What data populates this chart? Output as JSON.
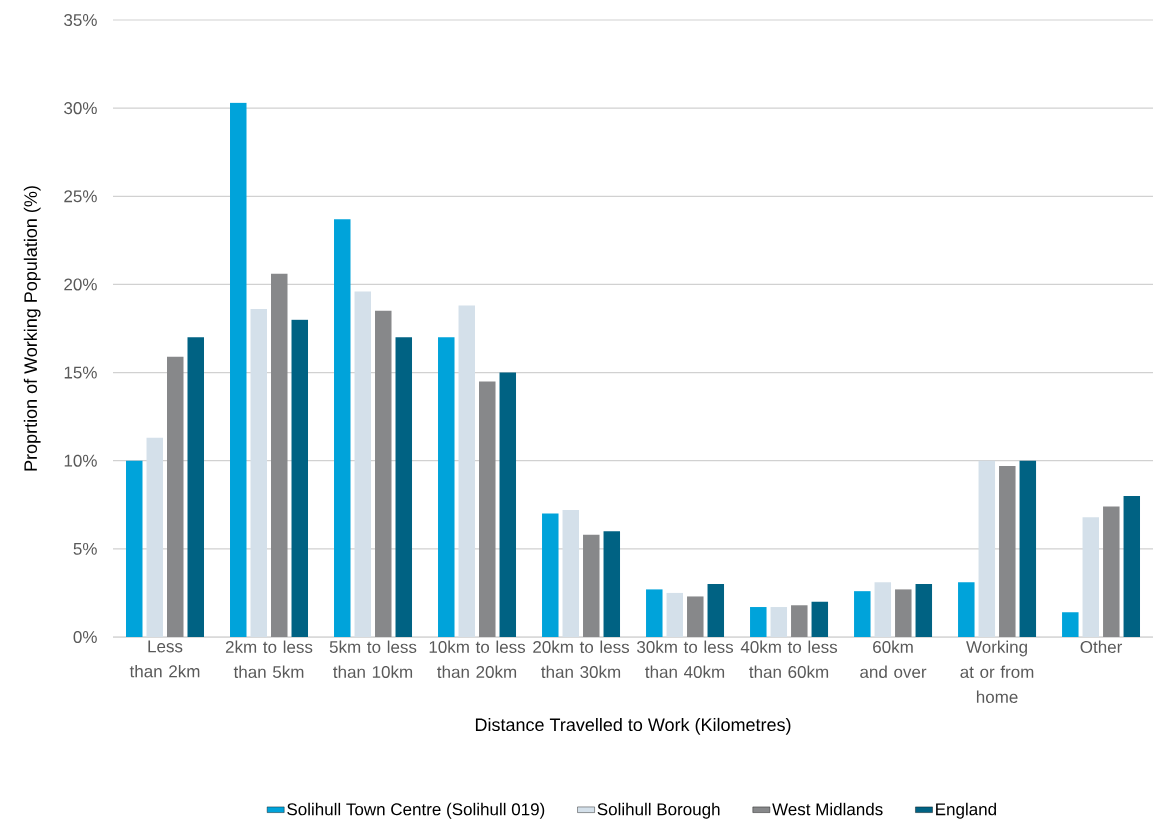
{
  "chart_data": {
    "type": "bar",
    "xlabel": "Distance Travelled to Work (Kilometres)",
    "ylabel": "Proprtion of Working Population (%)",
    "categories": [
      "Less than 2km",
      "2km to less than 5km",
      "5km to less than 10km",
      "10km to less than 20km",
      "20km to less than 30km",
      "30km to less than 40km",
      "40km to less than 60km",
      "60km and over",
      "Working at or from home",
      "Other"
    ],
    "series": [
      {
        "name": "Solihull Town Centre (Solihull 019)",
        "color": "#00a3da",
        "values": [
          10.0,
          30.3,
          23.7,
          17.0,
          7.0,
          2.7,
          1.7,
          2.6,
          3.1,
          1.4
        ]
      },
      {
        "name": "Solihull Borough",
        "color": "#d4e0ea",
        "values": [
          11.3,
          18.6,
          19.6,
          18.8,
          7.2,
          2.5,
          1.7,
          3.1,
          10.0,
          6.8
        ]
      },
      {
        "name": "West Midlands",
        "color": "#87888a",
        "values": [
          15.9,
          20.6,
          18.5,
          14.5,
          5.8,
          2.3,
          1.8,
          2.7,
          9.7,
          7.4
        ]
      },
      {
        "name": "England",
        "color": "#006283",
        "values": [
          17.0,
          18.0,
          17.0,
          15.0,
          6.0,
          3.0,
          2.0,
          3.0,
          10.0,
          8.0
        ]
      }
    ],
    "ylim": [
      0,
      35
    ],
    "yticks": [
      {
        "value": 0,
        "label": "0%"
      },
      {
        "value": 5,
        "label": "5%"
      },
      {
        "value": 10,
        "label": "10%"
      },
      {
        "value": 15,
        "label": "15%"
      },
      {
        "value": 20,
        "label": "20%"
      },
      {
        "value": 25,
        "label": "25%"
      },
      {
        "value": 30,
        "label": "30%"
      },
      {
        "value": 35,
        "label": "35%"
      }
    ],
    "grid": "y",
    "legend": "bottom"
  }
}
